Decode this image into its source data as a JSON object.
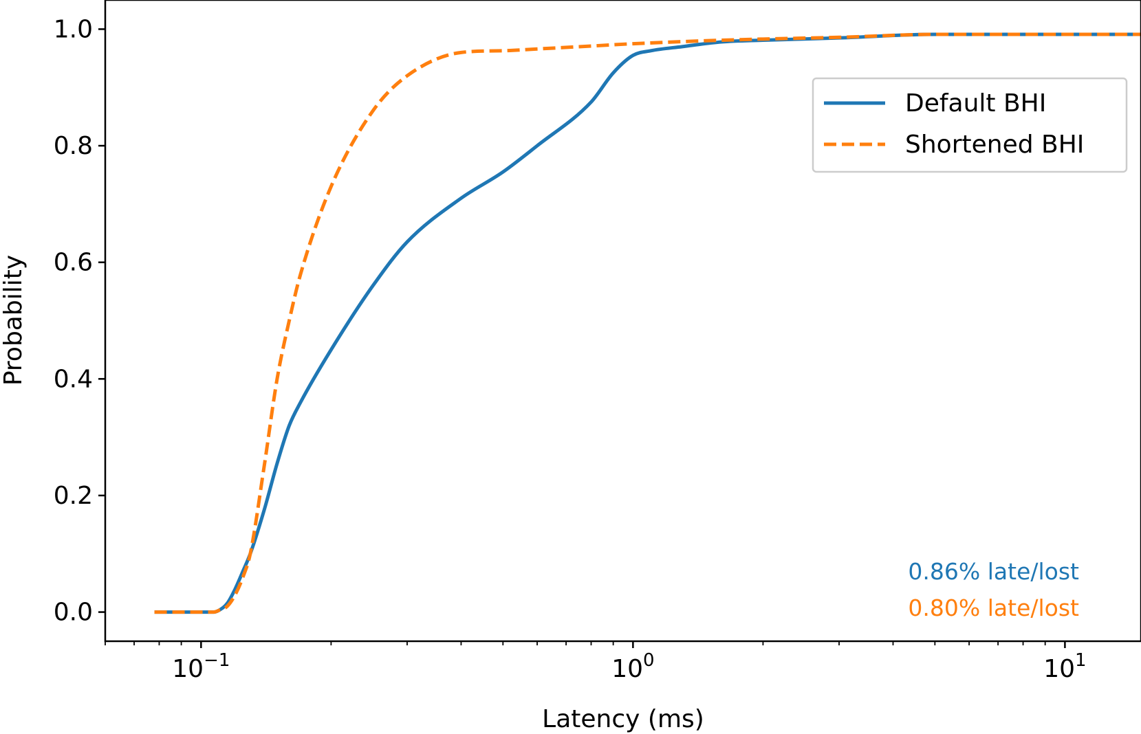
{
  "chart_data": {
    "type": "line",
    "title": "",
    "xlabel": "Latency (ms)",
    "ylabel": "Probability",
    "xscale": "log",
    "xlim": [
      0.06,
      15
    ],
    "ylim": [
      -0.05,
      1.05
    ],
    "grid": false,
    "x_ticks": [
      {
        "value": 0.1,
        "base": "10",
        "exp": "−1"
      },
      {
        "value": 1,
        "base": "10",
        "exp": "0"
      },
      {
        "value": 10,
        "base": "10",
        "exp": "1"
      }
    ],
    "y_ticks": [
      {
        "value": 0.0,
        "label": "0.0"
      },
      {
        "value": 0.2,
        "label": "0.2"
      },
      {
        "value": 0.4,
        "label": "0.4"
      },
      {
        "value": 0.6,
        "label": "0.6"
      },
      {
        "value": 0.8,
        "label": "0.8"
      },
      {
        "value": 1.0,
        "label": "1.0"
      }
    ],
    "legend_position": "top-right",
    "series": [
      {
        "name": "Default BHI",
        "color": "#1f77b4",
        "style": "solid",
        "x": [
          0.078,
          0.09,
          0.1,
          0.107,
          0.11,
          0.115,
          0.12,
          0.125,
          0.13,
          0.14,
          0.15,
          0.16,
          0.17,
          0.2,
          0.25,
          0.3,
          0.4,
          0.5,
          0.6,
          0.8,
          0.9,
          1.0,
          1.1,
          1.3,
          1.6,
          2.0,
          3.0,
          5.0,
          10.0,
          15.0
        ],
        "y": [
          0.0,
          0.0,
          0.0,
          0.0,
          0.003,
          0.015,
          0.04,
          0.07,
          0.1,
          0.175,
          0.255,
          0.32,
          0.36,
          0.45,
          0.56,
          0.635,
          0.71,
          0.755,
          0.8,
          0.875,
          0.925,
          0.955,
          0.963,
          0.97,
          0.978,
          0.981,
          0.985,
          0.991,
          0.991,
          0.991
        ]
      },
      {
        "name": "Shortened BHI",
        "color": "#ff7f0e",
        "style": "dashed",
        "x": [
          0.078,
          0.09,
          0.1,
          0.107,
          0.11,
          0.115,
          0.12,
          0.125,
          0.13,
          0.14,
          0.15,
          0.16,
          0.17,
          0.2,
          0.25,
          0.3,
          0.4,
          0.5,
          0.6,
          0.8,
          1.0,
          1.6,
          2.0,
          3.0,
          5.0,
          10.0,
          15.0
        ],
        "y": [
          0.0,
          0.0,
          0.0,
          0.0,
          0.003,
          0.01,
          0.03,
          0.06,
          0.1,
          0.25,
          0.4,
          0.5,
          0.58,
          0.73,
          0.86,
          0.92,
          0.96,
          0.963,
          0.966,
          0.971,
          0.975,
          0.981,
          0.983,
          0.986,
          0.991,
          0.991,
          0.991
        ]
      }
    ],
    "annotations": [
      {
        "text": "0.86% late/lost",
        "color": "#1f77b4"
      },
      {
        "text": "0.80% late/lost",
        "color": "#ff7f0e"
      }
    ]
  }
}
